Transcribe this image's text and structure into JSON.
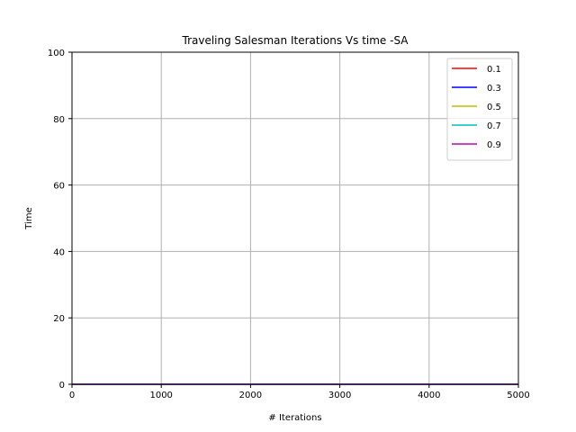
{
  "chart_data": {
    "type": "line",
    "title": "Traveling Salesman Iterations Vs time -SA",
    "xlabel": "# Iterations",
    "ylabel": "Time",
    "xlim": [
      0,
      5000
    ],
    "ylim": [
      0,
      100
    ],
    "xticks": [
      0,
      1000,
      2000,
      3000,
      4000,
      5000
    ],
    "yticks": [
      0,
      20,
      40,
      60,
      80,
      100
    ],
    "grid": true,
    "legend_position": "top-right",
    "x": [
      0,
      1000,
      2000,
      3000,
      4000,
      5000
    ],
    "series": [
      {
        "name": "0.1",
        "color": "#ff0000",
        "values": [
          0,
          0,
          0,
          0,
          0,
          0
        ]
      },
      {
        "name": "0.3",
        "color": "#0000ff",
        "values": [
          0,
          0,
          0,
          0,
          0,
          0
        ]
      },
      {
        "name": "0.5",
        "color": "#bfbf00",
        "values": [
          0,
          0,
          0,
          0,
          0,
          0
        ]
      },
      {
        "name": "0.7",
        "color": "#00bfbf",
        "values": [
          0,
          0,
          0,
          0,
          0,
          0
        ]
      },
      {
        "name": "0.9",
        "color": "#bf00bf",
        "values": [
          0,
          0,
          0,
          0,
          0,
          0
        ]
      }
    ]
  }
}
